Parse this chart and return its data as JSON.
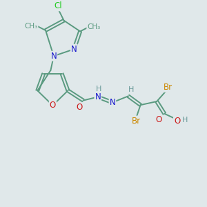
{
  "background_color": "#e0e8ea",
  "bond_color": "#5a9a80",
  "bond_lw": 1.4,
  "atom_colors": {
    "C": "#5a9a80",
    "N": "#1818cc",
    "O": "#cc1818",
    "Cl": "#22cc22",
    "Br": "#cc8800",
    "H": "#6a9a9a"
  },
  "fs": 8.5
}
